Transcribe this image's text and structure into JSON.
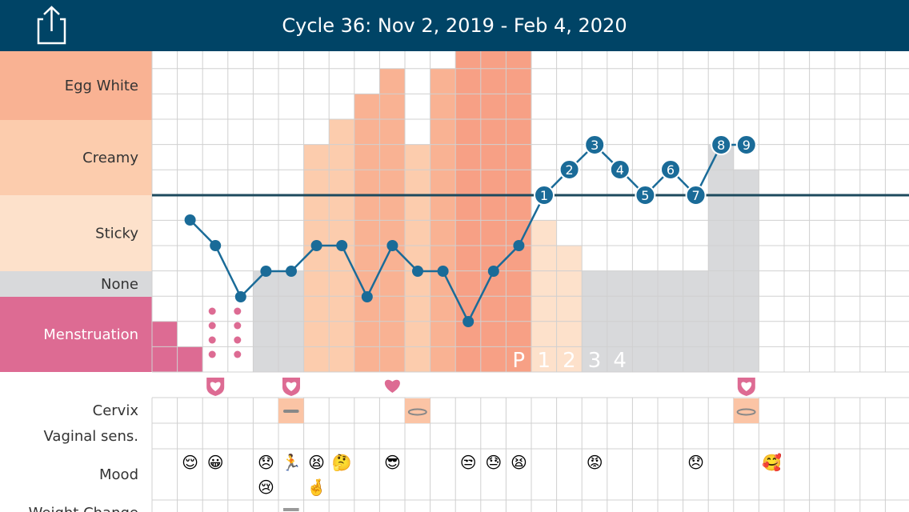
{
  "header": {
    "title": "Cycle 36: Nov 2, 2019 - Feb 4, 2020",
    "share_icon": "share-icon"
  },
  "rows": {
    "egg_white": "Egg White",
    "creamy": "Creamy",
    "sticky": "Sticky",
    "none": "None",
    "menstruation": "Menstruation",
    "cervix": "Cervix",
    "vaginal": "Vaginal sens.",
    "mood": "Mood",
    "weight": "Weight Change"
  },
  "colors": {
    "header": "#004466",
    "egg_white": "#f9b293",
    "creamy": "#fcccad",
    "sticky": "#fde1cb",
    "none": "#d8d9db",
    "menstruation": "#dd6b93",
    "temp_line": "#1a6b98",
    "coverline": "#1d4a5e",
    "heart": "#dd6b93"
  },
  "chart_data": {
    "type": "line",
    "days": 29,
    "fluid_levels": [
      "menstruation",
      "none",
      "sticky",
      "creamy",
      "egg_white"
    ],
    "fluid_by_day": [
      {
        "day": 1,
        "type": "menstruation",
        "level": 2
      },
      {
        "day": 2,
        "type": "menstruation",
        "level": 1
      },
      {
        "day": 3,
        "type": "spotting",
        "level": 1
      },
      {
        "day": 4,
        "type": "spotting",
        "level": 1
      },
      {
        "day": 5,
        "type": "none",
        "level": 4
      },
      {
        "day": 6,
        "type": "none",
        "level": 4
      },
      {
        "day": 7,
        "type": "creamy",
        "level": 9
      },
      {
        "day": 8,
        "type": "creamy",
        "level": 10
      },
      {
        "day": 9,
        "type": "egg_white",
        "level": 11
      },
      {
        "day": 10,
        "type": "egg_white",
        "level": 12
      },
      {
        "day": 11,
        "type": "creamy",
        "level": 9
      },
      {
        "day": 12,
        "type": "egg_white",
        "level": 12
      },
      {
        "day": 13,
        "type": "egg_white_peak",
        "level": 13
      },
      {
        "day": 14,
        "type": "egg_white_peak",
        "level": 13
      },
      {
        "day": 15,
        "type": "egg_white_peak",
        "level": 13
      },
      {
        "day": 16,
        "type": "sticky",
        "level": 6
      },
      {
        "day": 17,
        "type": "sticky",
        "level": 5
      },
      {
        "day": 18,
        "type": "none",
        "level": 4
      },
      {
        "day": 19,
        "type": "none",
        "level": 4
      },
      {
        "day": 20,
        "type": "none",
        "level": 4
      },
      {
        "day": 21,
        "type": "none",
        "level": 4
      },
      {
        "day": 22,
        "type": "none",
        "level": 4
      },
      {
        "day": 23,
        "type": "none",
        "level": 9
      },
      {
        "day": 24,
        "type": "none",
        "level": 8
      }
    ],
    "peak_labels": [
      {
        "day": 15,
        "label": "P"
      },
      {
        "day": 16,
        "label": "1"
      },
      {
        "day": 17,
        "label": "2"
      },
      {
        "day": 18,
        "label": "3"
      },
      {
        "day": 19,
        "label": "4"
      }
    ],
    "temperature": [
      {
        "day": 2,
        "value": 6
      },
      {
        "day": 3,
        "value": 5
      },
      {
        "day": 4,
        "value": 3
      },
      {
        "day": 5,
        "value": 4
      },
      {
        "day": 6,
        "value": 4
      },
      {
        "day": 7,
        "value": 5
      },
      {
        "day": 8,
        "value": 5
      },
      {
        "day": 9,
        "value": 3
      },
      {
        "day": 10,
        "value": 5
      },
      {
        "day": 11,
        "value": 4
      },
      {
        "day": 12,
        "value": 4
      },
      {
        "day": 13,
        "value": 2
      },
      {
        "day": 14,
        "value": 4
      },
      {
        "day": 15,
        "value": 5
      },
      {
        "day": 16,
        "value": 7,
        "label": "1"
      },
      {
        "day": 17,
        "value": 8,
        "label": "2"
      },
      {
        "day": 18,
        "value": 9,
        "label": "3"
      },
      {
        "day": 19,
        "value": 8,
        "label": "4"
      },
      {
        "day": 20,
        "value": 7,
        "label": "5"
      },
      {
        "day": 21,
        "value": 8,
        "label": "6"
      },
      {
        "day": 22,
        "value": 7,
        "label": "7"
      },
      {
        "day": 23,
        "value": 9,
        "label": "8"
      },
      {
        "day": 24,
        "value": 9,
        "label": "9"
      }
    ],
    "coverline": 7,
    "intercourse": [
      {
        "day": 3,
        "type": "protected"
      },
      {
        "day": 6,
        "type": "protected"
      },
      {
        "day": 10,
        "type": "unprotected"
      },
      {
        "day": 24,
        "type": "protected"
      }
    ],
    "cervix": [
      {
        "day": 6,
        "shape": "closed"
      },
      {
        "day": 11,
        "shape": "open"
      },
      {
        "day": 24,
        "shape": "open"
      }
    ],
    "mood": [
      {
        "day": 2,
        "emoji": "😌"
      },
      {
        "day": 3,
        "emoji": "😀"
      },
      {
        "day": 5,
        "emoji": "😞"
      },
      {
        "day": 5,
        "emoji": "😢"
      },
      {
        "day": 6,
        "emoji": "🏃"
      },
      {
        "day": 7,
        "emoji": "😫"
      },
      {
        "day": 7,
        "emoji": "🤞"
      },
      {
        "day": 8,
        "emoji": "🤔"
      },
      {
        "day": 10,
        "emoji": "😎"
      },
      {
        "day": 13,
        "emoji": "😒"
      },
      {
        "day": 14,
        "emoji": "😓"
      },
      {
        "day": 15,
        "emoji": "😫"
      },
      {
        "day": 18,
        "emoji": "😡"
      },
      {
        "day": 22,
        "emoji": "😞"
      },
      {
        "day": 25,
        "emoji": "🥰"
      }
    ],
    "weight_change": [
      {
        "day": 6,
        "mark": "dash"
      }
    ]
  }
}
